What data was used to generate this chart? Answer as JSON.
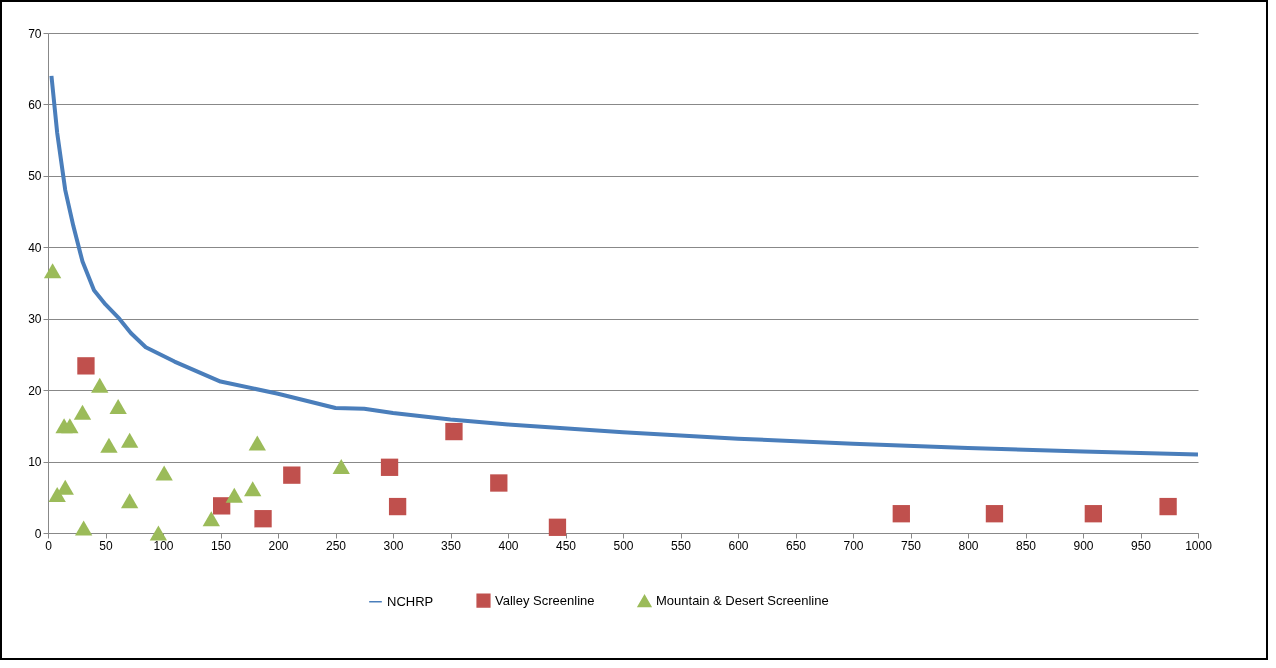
{
  "chart_data": {
    "type": "scatter",
    "xlim": [
      0,
      1000
    ],
    "xticks": [
      0,
      50,
      100,
      150,
      200,
      250,
      300,
      350,
      400,
      450,
      500,
      550,
      600,
      650,
      700,
      750,
      800,
      850,
      900,
      950,
      1000
    ],
    "ylim": [
      0,
      70
    ],
    "yticks": [
      0,
      10,
      20,
      30,
      40,
      50,
      60,
      70
    ],
    "grid": "y",
    "legend": "bottom",
    "series": [
      {
        "name": "NCHRP",
        "type": "line",
        "color": "#4a7ebb",
        "marker": "none",
        "line_style": "solid",
        "x": [
          3,
          8,
          15,
          22,
          30,
          40,
          50,
          62,
          72,
          85,
          110,
          150,
          200,
          250,
          275,
          300,
          350,
          400,
          500,
          600,
          700,
          800,
          900,
          1000
        ],
        "values": [
          64,
          56,
          48,
          43,
          38,
          34,
          32,
          30,
          28,
          26,
          24,
          21.2,
          19.5,
          17.5,
          17.4,
          16.8,
          15.9,
          15.2,
          14.1,
          13.2,
          12.5,
          11.9,
          11.4,
          11
        ]
      },
      {
        "name": "Valley Screenline",
        "color": "#c0504d",
        "marker": "square",
        "x": [
          33,
          151,
          187,
          212,
          297,
          304,
          353,
          392,
          443,
          742,
          823,
          909,
          974
        ],
        "values": [
          23.4,
          3.8,
          2.0,
          8.1,
          9.2,
          3.7,
          14.2,
          7.0,
          0.8,
          2.7,
          2.7,
          2.7,
          3.7
        ]
      },
      {
        "name": "Mountain & Desert Screenline",
        "color": "#9bbb59",
        "marker": "triangle",
        "x": [
          4,
          8,
          15,
          14,
          19,
          30,
          45,
          61,
          53,
          71,
          71,
          31,
          101,
          96,
          142,
          162,
          178,
          182,
          255
        ],
        "values": [
          36.7,
          5.4,
          6.4,
          15.0,
          15,
          16.9,
          20.7,
          17.7,
          12.3,
          13,
          4.5,
          0.7,
          8.4,
          0,
          2.0,
          5.3,
          6.2,
          12.6,
          9.3
        ]
      }
    ]
  }
}
